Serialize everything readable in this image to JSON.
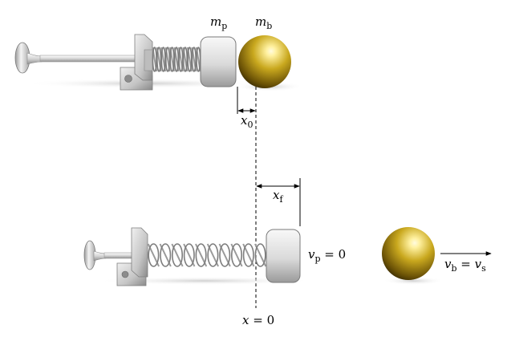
{
  "labels": {
    "m_p": {
      "main": "m",
      "sub": "p"
    },
    "m_b": {
      "main": "m",
      "sub": "b"
    },
    "x_0": {
      "main": "x",
      "sub": "0"
    },
    "x_f": {
      "main": "x",
      "sub": "f"
    },
    "v_p": {
      "main": "v",
      "sub": "p",
      "rest": " = 0"
    },
    "v_b": {
      "main": "v",
      "sub": "b",
      "mid": " = ",
      "main2": "v",
      "sub2": "s"
    },
    "x_eq": {
      "main": "x",
      "rest": " = 0"
    }
  },
  "colors": {
    "metal_light": "#f2f2f2",
    "metal_mid": "#c8c8c8",
    "metal_dark": "#8c8c8c",
    "ball_highlight": "#fff6b0",
    "ball_mid": "#c9a81e",
    "ball_dark": "#6b5206",
    "shadow": "#d9d9d9"
  }
}
